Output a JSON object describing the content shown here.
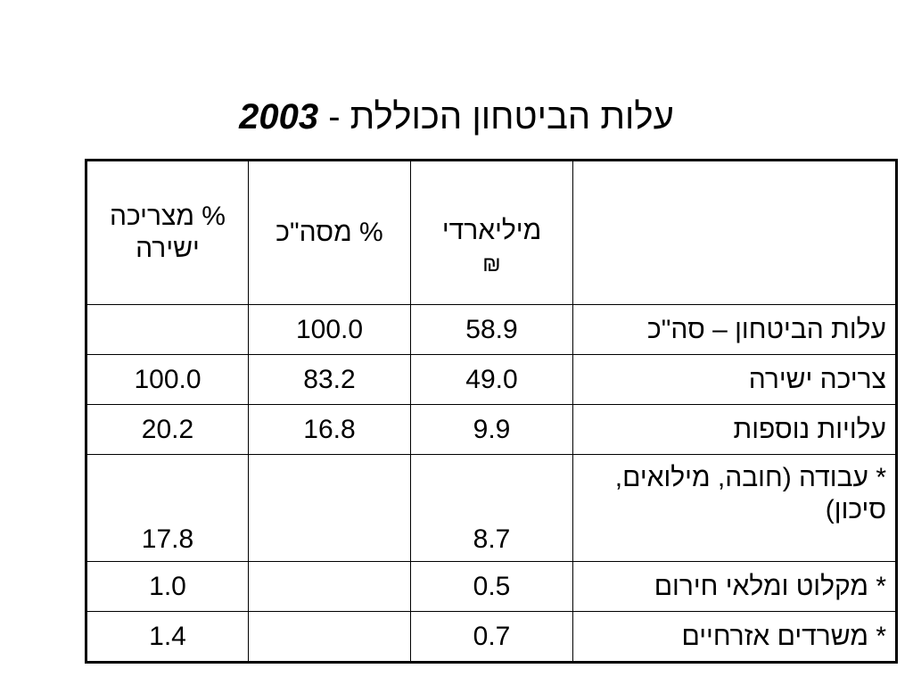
{
  "title": {
    "text": "עלות הביטחון הכוללת -",
    "year": "2003"
  },
  "table": {
    "headers": {
      "label": "",
      "billions_line1": "מיליארדי",
      "billions_line2": "₪",
      "pct_total": "% מסה\"כ",
      "pct_direct": "% מצריכה ישירה"
    },
    "rows": [
      {
        "label": "עלות הביטחון – סה\"כ",
        "billions": "58.9",
        "pct_total": "100.0",
        "pct_direct": ""
      },
      {
        "label": "צריכה ישירה",
        "billions": "49.0",
        "pct_total": "83.2",
        "pct_direct": "100.0"
      },
      {
        "label": "עלויות נוספות",
        "billions": "9.9",
        "pct_total": "16.8",
        "pct_direct": "20.2"
      },
      {
        "label": "* עבודה (חובה, מילואים, סיכון)",
        "billions": "8.7",
        "pct_total": "",
        "pct_direct": "17.8"
      },
      {
        "label": "* מקלוט ומלאי חירום",
        "billions": "0.5",
        "pct_total": "",
        "pct_direct": "1.0"
      },
      {
        "label": "* משרדים אזרחיים",
        "billions": "0.7",
        "pct_total": "",
        "pct_direct": "1.4"
      }
    ]
  }
}
